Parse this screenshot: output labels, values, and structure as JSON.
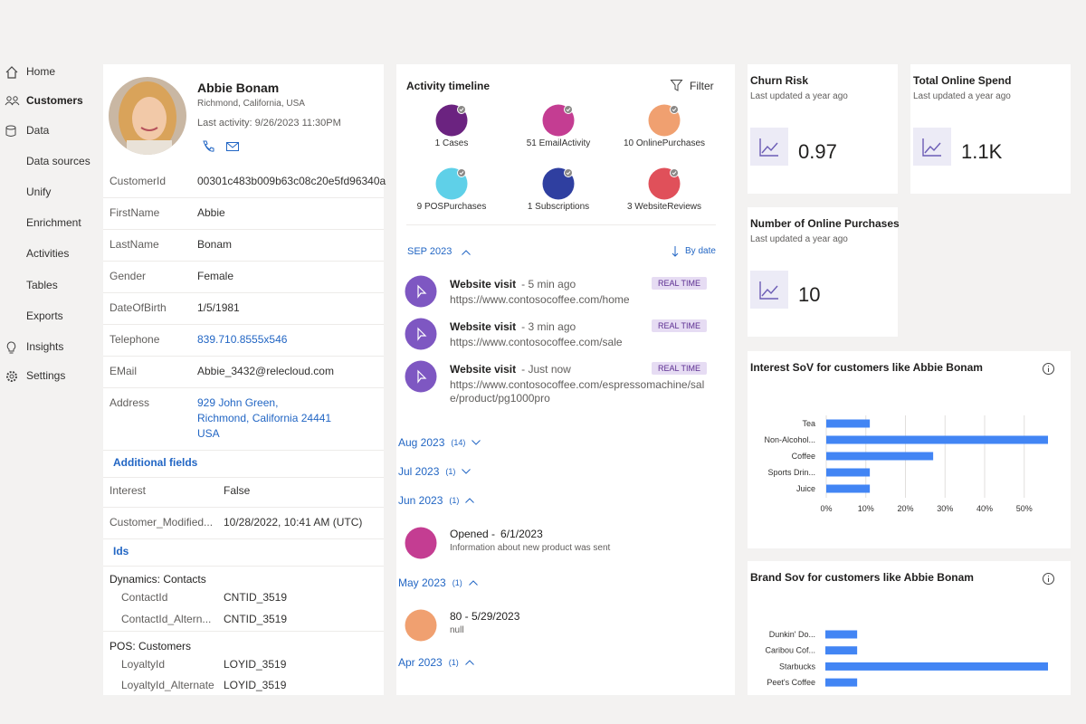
{
  "nav": [
    "Home",
    "Customers",
    "Data",
    "Data sources",
    "Unify",
    "Enrichment",
    "Activities",
    "Tables",
    "Exports",
    "Insights",
    "Settings"
  ],
  "profile": {
    "name": "Abbie Bonam",
    "location": "Richmond, California, USA",
    "last_activity": "Last activity: 9/26/2023 11:30PM"
  },
  "fields": [
    [
      "CustomerId",
      "00301c483b009b63c08c20e5fd96340a"
    ],
    [
      "FirstName",
      "Abbie"
    ],
    [
      "LastName",
      "Bonam"
    ],
    [
      "Gender",
      "Female"
    ],
    [
      "DateOfBirth",
      "1/5/1981"
    ],
    [
      "Telephone",
      "839.710.8555x546"
    ],
    [
      "EMail",
      "Abbie_3432@relecloud.com"
    ]
  ],
  "address": {
    "label": "Address",
    "lines": [
      "929 John Green,",
      "Richmond, California 24441",
      "USA"
    ]
  },
  "additional_fields": {
    "title": "Additional fields",
    "rows": [
      [
        "Interest",
        "False"
      ],
      [
        "Customer_Modified...",
        "10/28/2022, 10:41 AM (UTC)"
      ]
    ]
  },
  "ids": {
    "title": "Ids",
    "groups": [
      {
        "name": "Dynamics: Contacts",
        "rows": [
          [
            "ContactId",
            "CNTID_3519"
          ],
          [
            "ContactId_Altern...",
            "CNTID_3519"
          ]
        ]
      },
      {
        "name": "POS: Customers",
        "rows": [
          [
            "LoyaltyId",
            "LOYID_3519"
          ],
          [
            "LoyaltyId_Alternate",
            "LOYID_3519"
          ]
        ]
      }
    ]
  },
  "timeline": {
    "title": "Activity timeline",
    "filter": "Filter",
    "summary": [
      {
        "label": "1 Cases",
        "color": "#6b2380"
      },
      {
        "label": "51 EmailActivity",
        "color": "#c43d92"
      },
      {
        "label": "10 OnlinePurchases",
        "color": "#f0a070"
      },
      {
        "label": "9 POSPurchases",
        "color": "#5fd0e8"
      },
      {
        "label": "1 Subscriptions",
        "color": "#2f3fa0"
      },
      {
        "label": "3 WebsiteReviews",
        "color": "#e0505a"
      }
    ],
    "month": "SEP 2023",
    "sort": "By date",
    "events": [
      {
        "title": "Website visit",
        "time": "- 5 min ago",
        "detail": "https://www.contosocoffee.com/home",
        "badge": "REAL TIME",
        "color": "#7e57c2"
      },
      {
        "title": "Website visit",
        "time": "- 3 min ago",
        "detail": "https://www.contosocoffee.com/sale",
        "badge": "REAL TIME",
        "color": "#7e57c2"
      },
      {
        "title": "Website visit",
        "time": "- Just now",
        "detail": "https://www.contosocoffee.com/espressomachine/sale/product/pg1000pro",
        "badge": "REAL TIME",
        "color": "#7e57c2"
      }
    ],
    "months": [
      {
        "label": "Aug 2023",
        "count": "(14)",
        "expanded": false
      },
      {
        "label": "Jul 2023",
        "count": "(1)",
        "expanded": false
      },
      {
        "label": "Jun 2023",
        "count": "(1)",
        "expanded": true,
        "events": [
          {
            "title": "Opened -",
            "time": "6/1/2023",
            "detail": "Information about new product was sent",
            "color": "#c43d92"
          }
        ]
      },
      {
        "label": "May 2023",
        "count": "(1)",
        "expanded": true,
        "events": [
          {
            "title": "80 - 5/29/2023",
            "detail": "null",
            "color": "#f0a070"
          }
        ]
      },
      {
        "label": "Apr 2023",
        "count": "(1)",
        "expanded": true
      }
    ]
  },
  "kpis": [
    {
      "title": "Churn Risk",
      "updated": "Last updated a year ago",
      "value": "0.97"
    },
    {
      "title": "Total Online Spend",
      "updated": "Last updated a year ago",
      "value": "1.1K"
    },
    {
      "title": "Number of Online Purchases",
      "updated": "Last updated a year ago",
      "value": "10"
    }
  ],
  "charts": [
    {
      "type": "bar",
      "title": "Interest SoV for customers like Abbie Bonam",
      "categories": [
        "Tea",
        "Non-Alcohol...",
        "Coffee",
        "Sports Drin...",
        "Juice"
      ],
      "values": [
        11,
        56,
        27,
        11,
        11
      ],
      "color": "#4285f4",
      "xlim": [
        0,
        56
      ],
      "grid": true,
      "xticks": [
        {
          "value": 0,
          "label": "0%"
        },
        {
          "value": 10,
          "label": "10%"
        },
        {
          "value": 20,
          "label": "20%"
        },
        {
          "value": 30,
          "label": "30%"
        },
        {
          "value": 40,
          "label": "40%"
        },
        {
          "value": 50,
          "label": "50%"
        }
      ]
    },
    {
      "type": "bar",
      "title": "Brand Sov for customers like Abbie Bonam",
      "categories": [
        "Dunkin' Do...",
        "Caribou Cof...",
        "Starbucks",
        "Peet's Coffee"
      ],
      "values": [
        8,
        8,
        56,
        8
      ],
      "color": "#4285f4",
      "xlim": [
        0,
        56
      ]
    }
  ]
}
